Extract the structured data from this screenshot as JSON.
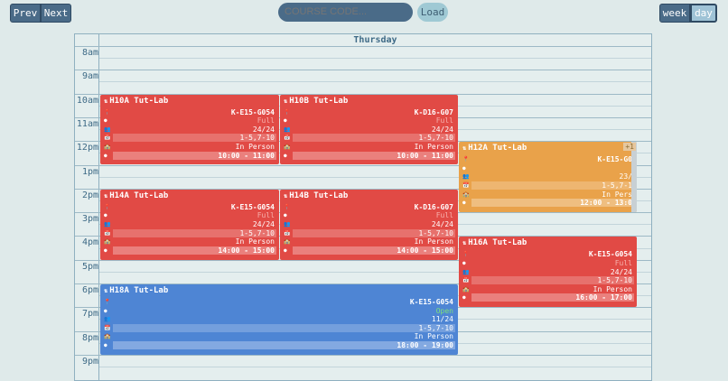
{
  "nav": {
    "prev": "Prev",
    "next": "Next"
  },
  "search": {
    "placeholder": "COURSE CODE...",
    "load": "Load"
  },
  "view": {
    "week": "week",
    "day": "day"
  },
  "day": "Thursday",
  "hours": [
    "8am",
    "9am",
    "10am",
    "11am",
    "12pm",
    "1pm",
    "2pm",
    "3pm",
    "4pm",
    "5pm",
    "6pm",
    "7pm",
    "8pm",
    "9pm"
  ],
  "events": [
    {
      "id": "h10a",
      "title": "H10A Tut-Lab",
      "room": "K-E15-G054",
      "status": "Full",
      "enrol": "24/24",
      "weeks": "1-5,7-10",
      "mode": "In Person",
      "time": "10:00 - 11:00",
      "color": "red"
    },
    {
      "id": "h10b",
      "title": "H10B Tut-Lab",
      "room": "K-D16-G07",
      "status": "Full",
      "enrol": "24/24",
      "weeks": "1-5,7-10",
      "mode": "In Person",
      "time": "10:00 - 11:00",
      "color": "red"
    },
    {
      "id": "h12a",
      "title": "H12A Tut-Lab",
      "room": "K-E15-G0",
      "status": "",
      "enrol": "23/",
      "weeks": "1-5,7-1",
      "mode": "In Pers",
      "time": "12:00 - 13:0",
      "color": "orange",
      "more": "+1"
    },
    {
      "id": "h14a",
      "title": "H14A Tut-Lab",
      "room": "K-E15-G054",
      "status": "Full",
      "enrol": "24/24",
      "weeks": "1-5,7-10",
      "mode": "In Person",
      "time": "14:00 - 15:00",
      "color": "red"
    },
    {
      "id": "h14b",
      "title": "H14B Tut-Lab",
      "room": "K-D16-G07",
      "status": "Full",
      "enrol": "24/24",
      "weeks": "1-5,7-10",
      "mode": "In Person",
      "time": "14:00 - 15:00",
      "color": "red"
    },
    {
      "id": "h16a",
      "title": "H16A Tut-Lab",
      "room": "K-E15-G054",
      "status": "Full",
      "enrol": "24/24",
      "weeks": "1-5,7-10",
      "mode": "In Person",
      "time": "16:00 - 17:00",
      "color": "red"
    },
    {
      "id": "h18a",
      "title": "H18A Tut-Lab",
      "room": "K-E15-G054",
      "status": "Open",
      "enrol": "11/24",
      "weeks": "1-5,7-10",
      "mode": "In Person",
      "time": "18:00 - 19:00",
      "color": "blue"
    }
  ]
}
